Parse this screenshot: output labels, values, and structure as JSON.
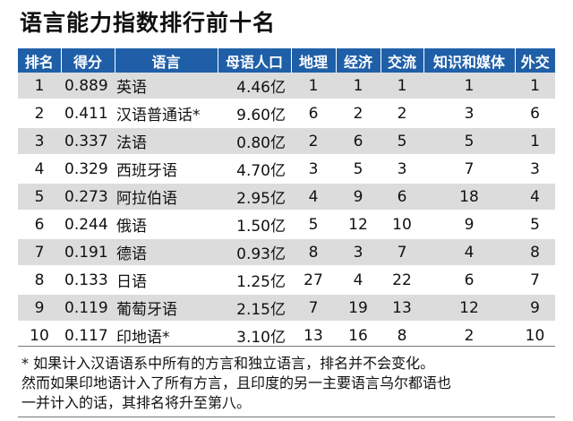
{
  "title": "语言能力指数排行前十名",
  "table": {
    "headers": [
      "排名",
      "得分",
      "语言",
      "母语人口",
      "地理",
      "经济",
      "交流",
      "知识和媒体",
      "外交"
    ],
    "rows": [
      [
        "1",
        "0.889",
        "英语",
        "4.46亿",
        "1",
        "1",
        "1",
        "1",
        "1"
      ],
      [
        "2",
        "0.411",
        "汉语普通话*",
        "9.60亿",
        "6",
        "2",
        "2",
        "3",
        "6"
      ],
      [
        "3",
        "0.337",
        "法语",
        "0.80亿",
        "2",
        "6",
        "5",
        "5",
        "1"
      ],
      [
        "4",
        "0.329",
        "西班牙语",
        "4.70亿",
        "3",
        "5",
        "3",
        "7",
        "3"
      ],
      [
        "5",
        "0.273",
        "阿拉伯语",
        "2.95亿",
        "4",
        "9",
        "6",
        "18",
        "4"
      ],
      [
        "6",
        "0.244",
        "俄语",
        "1.50亿",
        "5",
        "12",
        "10",
        "9",
        "5"
      ],
      [
        "7",
        "0.191",
        "德语",
        "0.93亿",
        "8",
        "3",
        "7",
        "4",
        "8"
      ],
      [
        "8",
        "0.133",
        "日语",
        "1.25亿",
        "27",
        "4",
        "22",
        "6",
        "7"
      ],
      [
        "9",
        "0.119",
        "葡萄牙语",
        "2.15亿",
        "7",
        "19",
        "13",
        "12",
        "9"
      ],
      [
        "10",
        "0.117",
        "印地语*",
        "3.10亿",
        "13",
        "16",
        "8",
        "2",
        "10"
      ]
    ]
  },
  "footnote": {
    "line1": "* 如果计入汉语语系中所有的方言和独立语言，排名并不会变化。",
    "line2": "然而如果印地语计入了所有方言，且印度的另一主要语言乌尔都语也",
    "line3": "一并计入的话，其排名将升至第八。"
  },
  "colors": {
    "header_bg": "#1f5fa8",
    "header_text": "#ffffff",
    "row_odd": "#dcdcdc",
    "row_even": "#ffffff"
  }
}
